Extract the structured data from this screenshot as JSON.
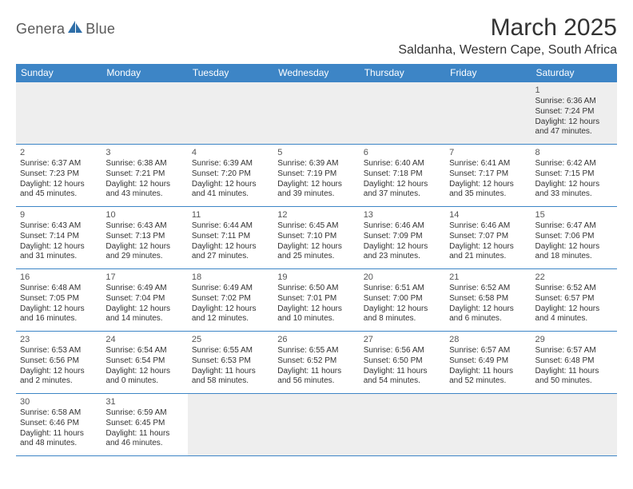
{
  "logo": {
    "text_left": "Genera",
    "text_right": "Blue",
    "accent_color": "#2e6ea8",
    "text_color": "#5a5a5a"
  },
  "header": {
    "month_title": "March 2025",
    "location": "Saldanha, Western Cape, South Africa"
  },
  "colors": {
    "header_bg": "#3d85c6",
    "header_fg": "#ffffff",
    "cell_border": "#3d85c6",
    "empty_bg": "#eeeeee"
  },
  "weekdays": [
    "Sunday",
    "Monday",
    "Tuesday",
    "Wednesday",
    "Thursday",
    "Friday",
    "Saturday"
  ],
  "weeks": [
    [
      null,
      null,
      null,
      null,
      null,
      null,
      {
        "n": "1",
        "sr": "6:36 AM",
        "ss": "7:24 PM",
        "dl": "12 hours and 47 minutes."
      }
    ],
    [
      {
        "n": "2",
        "sr": "6:37 AM",
        "ss": "7:23 PM",
        "dl": "12 hours and 45 minutes."
      },
      {
        "n": "3",
        "sr": "6:38 AM",
        "ss": "7:21 PM",
        "dl": "12 hours and 43 minutes."
      },
      {
        "n": "4",
        "sr": "6:39 AM",
        "ss": "7:20 PM",
        "dl": "12 hours and 41 minutes."
      },
      {
        "n": "5",
        "sr": "6:39 AM",
        "ss": "7:19 PM",
        "dl": "12 hours and 39 minutes."
      },
      {
        "n": "6",
        "sr": "6:40 AM",
        "ss": "7:18 PM",
        "dl": "12 hours and 37 minutes."
      },
      {
        "n": "7",
        "sr": "6:41 AM",
        "ss": "7:17 PM",
        "dl": "12 hours and 35 minutes."
      },
      {
        "n": "8",
        "sr": "6:42 AM",
        "ss": "7:15 PM",
        "dl": "12 hours and 33 minutes."
      }
    ],
    [
      {
        "n": "9",
        "sr": "6:43 AM",
        "ss": "7:14 PM",
        "dl": "12 hours and 31 minutes."
      },
      {
        "n": "10",
        "sr": "6:43 AM",
        "ss": "7:13 PM",
        "dl": "12 hours and 29 minutes."
      },
      {
        "n": "11",
        "sr": "6:44 AM",
        "ss": "7:11 PM",
        "dl": "12 hours and 27 minutes."
      },
      {
        "n": "12",
        "sr": "6:45 AM",
        "ss": "7:10 PM",
        "dl": "12 hours and 25 minutes."
      },
      {
        "n": "13",
        "sr": "6:46 AM",
        "ss": "7:09 PM",
        "dl": "12 hours and 23 minutes."
      },
      {
        "n": "14",
        "sr": "6:46 AM",
        "ss": "7:07 PM",
        "dl": "12 hours and 21 minutes."
      },
      {
        "n": "15",
        "sr": "6:47 AM",
        "ss": "7:06 PM",
        "dl": "12 hours and 18 minutes."
      }
    ],
    [
      {
        "n": "16",
        "sr": "6:48 AM",
        "ss": "7:05 PM",
        "dl": "12 hours and 16 minutes."
      },
      {
        "n": "17",
        "sr": "6:49 AM",
        "ss": "7:04 PM",
        "dl": "12 hours and 14 minutes."
      },
      {
        "n": "18",
        "sr": "6:49 AM",
        "ss": "7:02 PM",
        "dl": "12 hours and 12 minutes."
      },
      {
        "n": "19",
        "sr": "6:50 AM",
        "ss": "7:01 PM",
        "dl": "12 hours and 10 minutes."
      },
      {
        "n": "20",
        "sr": "6:51 AM",
        "ss": "7:00 PM",
        "dl": "12 hours and 8 minutes."
      },
      {
        "n": "21",
        "sr": "6:52 AM",
        "ss": "6:58 PM",
        "dl": "12 hours and 6 minutes."
      },
      {
        "n": "22",
        "sr": "6:52 AM",
        "ss": "6:57 PM",
        "dl": "12 hours and 4 minutes."
      }
    ],
    [
      {
        "n": "23",
        "sr": "6:53 AM",
        "ss": "6:56 PM",
        "dl": "12 hours and 2 minutes."
      },
      {
        "n": "24",
        "sr": "6:54 AM",
        "ss": "6:54 PM",
        "dl": "12 hours and 0 minutes."
      },
      {
        "n": "25",
        "sr": "6:55 AM",
        "ss": "6:53 PM",
        "dl": "11 hours and 58 minutes."
      },
      {
        "n": "26",
        "sr": "6:55 AM",
        "ss": "6:52 PM",
        "dl": "11 hours and 56 minutes."
      },
      {
        "n": "27",
        "sr": "6:56 AM",
        "ss": "6:50 PM",
        "dl": "11 hours and 54 minutes."
      },
      {
        "n": "28",
        "sr": "6:57 AM",
        "ss": "6:49 PM",
        "dl": "11 hours and 52 minutes."
      },
      {
        "n": "29",
        "sr": "6:57 AM",
        "ss": "6:48 PM",
        "dl": "11 hours and 50 minutes."
      }
    ],
    [
      {
        "n": "30",
        "sr": "6:58 AM",
        "ss": "6:46 PM",
        "dl": "11 hours and 48 minutes."
      },
      {
        "n": "31",
        "sr": "6:59 AM",
        "ss": "6:45 PM",
        "dl": "11 hours and 46 minutes."
      },
      null,
      null,
      null,
      null,
      null
    ]
  ],
  "labels": {
    "sunrise": "Sunrise: ",
    "sunset": "Sunset: ",
    "daylight": "Daylight: "
  }
}
